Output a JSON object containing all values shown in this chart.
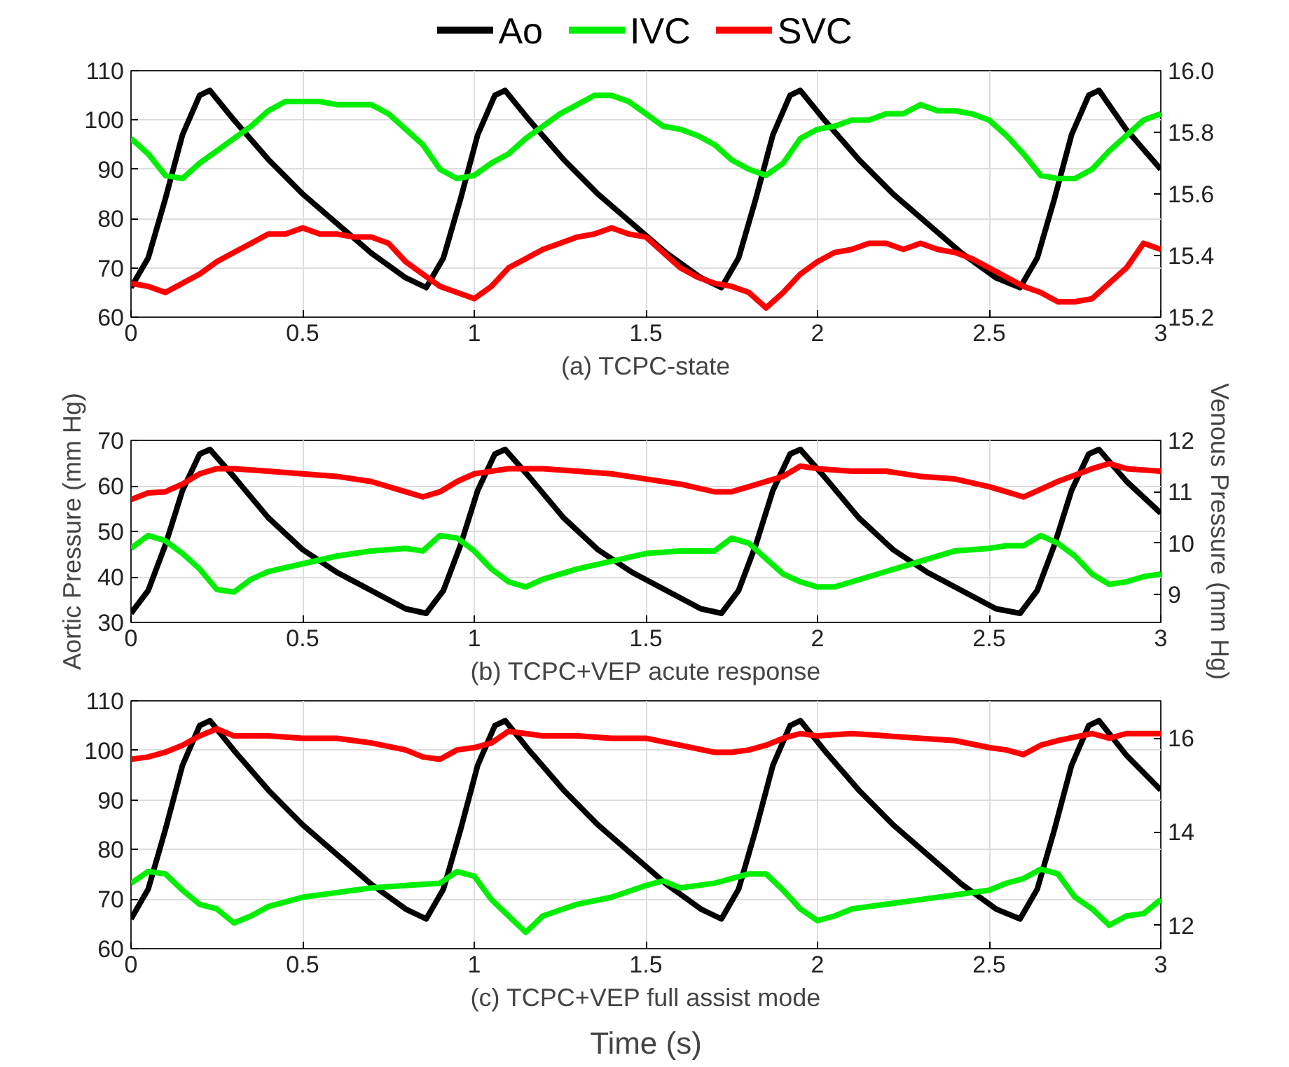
{
  "chart_data": [
    {
      "type": "line",
      "xlabel": "(a) TCPC-state",
      "legend": "top",
      "grid": true,
      "marker": "none",
      "line_style": "solid",
      "xlim": [
        0,
        3
      ],
      "xticks": [
        0,
        0.5,
        1,
        1.5,
        2,
        2.5,
        3
      ],
      "ylim": [
        60,
        110
      ],
      "yticks": [
        60,
        70,
        80,
        90,
        100,
        110
      ],
      "y2lim": [
        15.2,
        16.0
      ],
      "y2ticks": [
        15.2,
        15.4,
        15.6,
        15.8,
        {
          "value": 16.0,
          "label": "16.0"
        }
      ],
      "series": [
        {
          "name": "Ao",
          "color": "#000000",
          "axis": "y",
          "x": [
            0,
            0.05,
            0.1,
            0.15,
            0.2,
            0.23,
            0.3,
            0.4,
            0.5,
            0.6,
            0.7,
            0.8,
            0.86,
            0.91,
            0.96,
            1.01,
            1.06,
            1.09,
            1.16,
            1.26,
            1.36,
            1.46,
            1.56,
            1.66,
            1.72,
            1.77,
            1.82,
            1.87,
            1.92,
            1.95,
            2.02,
            2.12,
            2.22,
            2.32,
            2.42,
            2.52,
            2.59,
            2.64,
            2.69,
            2.74,
            2.79,
            2.82,
            2.9,
            3.0
          ],
          "values": [
            66,
            72,
            84,
            97,
            105,
            106,
            100,
            92,
            85,
            79,
            73,
            68,
            66,
            72,
            84,
            97,
            105,
            106,
            100,
            92,
            85,
            79,
            73,
            68,
            66,
            72,
            84,
            97,
            105,
            106,
            100,
            92,
            85,
            79,
            73,
            68,
            66,
            72,
            84,
            97,
            105,
            106,
            98,
            90
          ]
        },
        {
          "name": "IVC",
          "color": "#00ee00",
          "axis": "y2",
          "x": [
            0,
            0.05,
            0.1,
            0.15,
            0.2,
            0.25,
            0.3,
            0.35,
            0.4,
            0.45,
            0.5,
            0.55,
            0.6,
            0.65,
            0.7,
            0.75,
            0.8,
            0.85,
            0.9,
            0.95,
            1.0,
            1.05,
            1.1,
            1.15,
            1.2,
            1.25,
            1.3,
            1.35,
            1.4,
            1.45,
            1.5,
            1.55,
            1.6,
            1.65,
            1.7,
            1.75,
            1.8,
            1.85,
            1.9,
            1.95,
            2.0,
            2.05,
            2.1,
            2.15,
            2.2,
            2.25,
            2.3,
            2.35,
            2.4,
            2.45,
            2.5,
            2.55,
            2.6,
            2.65,
            2.7,
            2.75,
            2.8,
            2.85,
            2.9,
            2.95,
            3.0
          ],
          "values": [
            15.78,
            15.73,
            15.66,
            15.65,
            15.7,
            15.74,
            15.78,
            15.82,
            15.87,
            15.9,
            15.9,
            15.9,
            15.89,
            15.89,
            15.89,
            15.86,
            15.81,
            15.76,
            15.68,
            15.65,
            15.66,
            15.7,
            15.73,
            15.78,
            15.82,
            15.86,
            15.89,
            15.92,
            15.92,
            15.9,
            15.86,
            15.82,
            15.81,
            15.79,
            15.76,
            15.71,
            15.68,
            15.66,
            15.7,
            15.78,
            15.81,
            15.82,
            15.84,
            15.84,
            15.86,
            15.86,
            15.89,
            15.87,
            15.87,
            15.86,
            15.84,
            15.79,
            15.73,
            15.66,
            15.65,
            15.65,
            15.68,
            15.74,
            15.79,
            15.84,
            15.86
          ]
        },
        {
          "name": "SVC",
          "color": "#ff0000",
          "axis": "y2",
          "x": [
            0,
            0.05,
            0.1,
            0.15,
            0.2,
            0.25,
            0.3,
            0.35,
            0.4,
            0.45,
            0.5,
            0.55,
            0.6,
            0.65,
            0.7,
            0.75,
            0.8,
            0.85,
            0.9,
            0.95,
            1.0,
            1.05,
            1.1,
            1.15,
            1.2,
            1.25,
            1.3,
            1.35,
            1.4,
            1.45,
            1.5,
            1.55,
            1.6,
            1.65,
            1.7,
            1.75,
            1.8,
            1.85,
            1.9,
            1.95,
            2.0,
            2.05,
            2.1,
            2.15,
            2.2,
            2.25,
            2.3,
            2.35,
            2.4,
            2.45,
            2.5,
            2.55,
            2.6,
            2.65,
            2.7,
            2.75,
            2.8,
            2.85,
            2.9,
            2.95,
            3.0
          ],
          "values": [
            15.31,
            15.3,
            15.28,
            15.31,
            15.34,
            15.38,
            15.41,
            15.44,
            15.47,
            15.47,
            15.49,
            15.47,
            15.47,
            15.46,
            15.46,
            15.44,
            15.38,
            15.34,
            15.3,
            15.28,
            15.26,
            15.3,
            15.36,
            15.39,
            15.42,
            15.44,
            15.46,
            15.47,
            15.49,
            15.47,
            15.46,
            15.41,
            15.36,
            15.33,
            15.31,
            15.3,
            15.28,
            15.23,
            15.28,
            15.34,
            15.38,
            15.41,
            15.42,
            15.44,
            15.44,
            15.42,
            15.44,
            15.42,
            15.41,
            15.39,
            15.36,
            15.33,
            15.3,
            15.28,
            15.25,
            15.25,
            15.26,
            15.31,
            15.36,
            15.44,
            15.42
          ]
        }
      ]
    },
    {
      "type": "line",
      "xlabel": "(b) TCPC+VEP acute response",
      "ylabel": "Aortic Pressure (mm Hg)",
      "y2label": "Venous Pressure (mm Hg)",
      "grid": true,
      "marker": "none",
      "line_style": "solid",
      "xlim": [
        0,
        3
      ],
      "xticks": [
        0,
        0.5,
        1,
        1.5,
        2,
        2.5,
        3
      ],
      "ylim": [
        30,
        70
      ],
      "yticks": [
        30,
        40,
        50,
        60,
        70
      ],
      "y2lim": [
        8.46,
        12
      ],
      "y2ticks": [
        9,
        10,
        11,
        12
      ],
      "series": [
        {
          "color": "#000000",
          "axis": "y",
          "x": [
            0,
            0.05,
            0.1,
            0.15,
            0.2,
            0.23,
            0.3,
            0.4,
            0.5,
            0.6,
            0.7,
            0.8,
            0.86,
            0.91,
            0.96,
            1.01,
            1.06,
            1.09,
            1.16,
            1.26,
            1.36,
            1.46,
            1.56,
            1.66,
            1.72,
            1.77,
            1.82,
            1.87,
            1.92,
            1.95,
            2.02,
            2.12,
            2.22,
            2.32,
            2.42,
            2.52,
            2.59,
            2.64,
            2.69,
            2.74,
            2.79,
            2.82,
            2.9,
            3.0
          ],
          "values": [
            32,
            37,
            47,
            59,
            67,
            68,
            62,
            53,
            46,
            41,
            37,
            33,
            32,
            37,
            47,
            59,
            67,
            68,
            62,
            53,
            46,
            41,
            37,
            33,
            32,
            37,
            47,
            59,
            67,
            68,
            62,
            53,
            46,
            41,
            37,
            33,
            32,
            37,
            47,
            59,
            67,
            68,
            61,
            54
          ]
        },
        {
          "color": "#00ee00",
          "axis": "y2",
          "x": [
            0,
            0.05,
            0.1,
            0.15,
            0.2,
            0.25,
            0.3,
            0.35,
            0.4,
            0.5,
            0.6,
            0.7,
            0.8,
            0.85,
            0.9,
            0.95,
            1.0,
            1.05,
            1.1,
            1.15,
            1.2,
            1.3,
            1.4,
            1.5,
            1.6,
            1.7,
            1.75,
            1.8,
            1.85,
            1.9,
            1.95,
            2.0,
            2.05,
            2.1,
            2.2,
            2.3,
            2.4,
            2.5,
            2.55,
            2.6,
            2.65,
            2.7,
            2.75,
            2.8,
            2.85,
            2.9,
            2.95,
            3.0
          ],
          "values": [
            9.9,
            10.15,
            10.05,
            9.8,
            9.5,
            9.1,
            9.05,
            9.3,
            9.45,
            9.6,
            9.75,
            9.85,
            9.9,
            9.85,
            10.15,
            10.1,
            9.85,
            9.5,
            9.25,
            9.15,
            9.3,
            9.5,
            9.65,
            9.8,
            9.85,
            9.85,
            10.1,
            10.0,
            9.7,
            9.4,
            9.25,
            9.15,
            9.15,
            9.25,
            9.45,
            9.65,
            9.85,
            9.9,
            9.95,
            9.95,
            10.15,
            10.0,
            9.75,
            9.4,
            9.2,
            9.25,
            9.35,
            9.4
          ]
        },
        {
          "color": "#ff0000",
          "axis": "y2",
          "x": [
            0,
            0.05,
            0.1,
            0.15,
            0.2,
            0.25,
            0.3,
            0.4,
            0.5,
            0.6,
            0.7,
            0.8,
            0.85,
            0.9,
            0.95,
            1.0,
            1.1,
            1.2,
            1.3,
            1.4,
            1.5,
            1.6,
            1.7,
            1.75,
            1.8,
            1.9,
            1.95,
            2.0,
            2.1,
            2.2,
            2.3,
            2.4,
            2.5,
            2.55,
            2.6,
            2.65,
            2.7,
            2.8,
            2.85,
            2.9,
            3.0
          ],
          "values": [
            10.85,
            10.98,
            11.0,
            11.15,
            11.35,
            11.45,
            11.45,
            11.4,
            11.35,
            11.3,
            11.2,
            11.0,
            10.9,
            11.0,
            11.2,
            11.35,
            11.45,
            11.45,
            11.4,
            11.35,
            11.25,
            11.15,
            11.0,
            11.0,
            11.1,
            11.3,
            11.5,
            11.45,
            11.4,
            11.4,
            11.3,
            11.25,
            11.1,
            11.0,
            10.9,
            11.05,
            11.2,
            11.45,
            11.55,
            11.45,
            11.4
          ]
        }
      ]
    },
    {
      "type": "line",
      "xlabel": "(c) TCPC+VEP full assist mode",
      "annotations": [
        "Time (s)"
      ],
      "grid": true,
      "marker": "none",
      "line_style": "solid",
      "xlim": [
        0,
        3
      ],
      "xticks": [
        0,
        0.5,
        1,
        1.5,
        2,
        2.5,
        3
      ],
      "ylim": [
        60,
        110
      ],
      "yticks": [
        60,
        70,
        80,
        90,
        100,
        110
      ],
      "y2lim": [
        11.5,
        16.8
      ],
      "y2ticks": [
        12,
        14,
        16
      ],
      "series": [
        {
          "color": "#000000",
          "axis": "y",
          "x": [
            0,
            0.05,
            0.1,
            0.15,
            0.2,
            0.23,
            0.3,
            0.4,
            0.5,
            0.6,
            0.7,
            0.8,
            0.86,
            0.91,
            0.96,
            1.01,
            1.06,
            1.09,
            1.16,
            1.26,
            1.36,
            1.46,
            1.56,
            1.66,
            1.72,
            1.77,
            1.82,
            1.87,
            1.92,
            1.95,
            2.02,
            2.12,
            2.22,
            2.32,
            2.42,
            2.52,
            2.59,
            2.64,
            2.69,
            2.74,
            2.79,
            2.82,
            2.9,
            3.0
          ],
          "values": [
            66,
            72,
            84,
            97,
            105,
            106,
            100,
            92,
            85,
            79,
            73,
            68,
            66,
            72,
            84,
            97,
            105,
            106,
            100,
            92,
            85,
            79,
            73,
            68,
            66,
            72,
            84,
            97,
            105,
            106,
            100,
            92,
            85,
            79,
            73,
            68,
            66,
            72,
            84,
            97,
            105,
            106,
            99,
            92
          ]
        },
        {
          "color": "#00ee00",
          "axis": "y2",
          "x": [
            0,
            0.05,
            0.1,
            0.15,
            0.2,
            0.25,
            0.3,
            0.35,
            0.4,
            0.5,
            0.6,
            0.7,
            0.8,
            0.9,
            0.95,
            1.0,
            1.05,
            1.1,
            1.15,
            1.2,
            1.3,
            1.4,
            1.5,
            1.55,
            1.6,
            1.7,
            1.8,
            1.85,
            1.9,
            1.95,
            2.0,
            2.05,
            2.1,
            2.2,
            2.3,
            2.4,
            2.5,
            2.55,
            2.6,
            2.65,
            2.7,
            2.75,
            2.8,
            2.85,
            2.9,
            2.95,
            3.0
          ],
          "values": [
            12.9,
            13.15,
            13.1,
            12.75,
            12.45,
            12.35,
            12.05,
            12.2,
            12.4,
            12.6,
            12.7,
            12.8,
            12.85,
            12.9,
            13.15,
            13.05,
            12.55,
            12.2,
            11.85,
            12.2,
            12.45,
            12.6,
            12.85,
            12.95,
            12.8,
            12.9,
            13.1,
            13.1,
            12.75,
            12.35,
            12.1,
            12.2,
            12.35,
            12.45,
            12.55,
            12.65,
            12.75,
            12.9,
            13.0,
            13.2,
            13.1,
            12.6,
            12.35,
            12.0,
            12.2,
            12.25,
            12.55
          ]
        },
        {
          "color": "#ff0000",
          "axis": "y2",
          "x": [
            0,
            0.05,
            0.1,
            0.15,
            0.2,
            0.25,
            0.3,
            0.4,
            0.5,
            0.6,
            0.7,
            0.8,
            0.85,
            0.9,
            0.95,
            1.0,
            1.05,
            1.1,
            1.2,
            1.3,
            1.4,
            1.5,
            1.6,
            1.7,
            1.75,
            1.8,
            1.85,
            1.9,
            1.95,
            2.0,
            2.1,
            2.2,
            2.3,
            2.4,
            2.5,
            2.55,
            2.6,
            2.65,
            2.7,
            2.8,
            2.85,
            2.9,
            3.0
          ],
          "values": [
            15.55,
            15.6,
            15.7,
            15.85,
            16.05,
            16.2,
            16.05,
            16.05,
            16.0,
            16.0,
            15.9,
            15.75,
            15.6,
            15.55,
            15.75,
            15.8,
            15.9,
            16.15,
            16.05,
            16.05,
            16.0,
            16.0,
            15.85,
            15.7,
            15.7,
            15.75,
            15.85,
            16.0,
            16.1,
            16.05,
            16.1,
            16.05,
            16.0,
            15.95,
            15.8,
            15.75,
            15.65,
            15.85,
            15.95,
            16.1,
            16.0,
            16.1,
            16.1
          ]
        }
      ]
    }
  ]
}
